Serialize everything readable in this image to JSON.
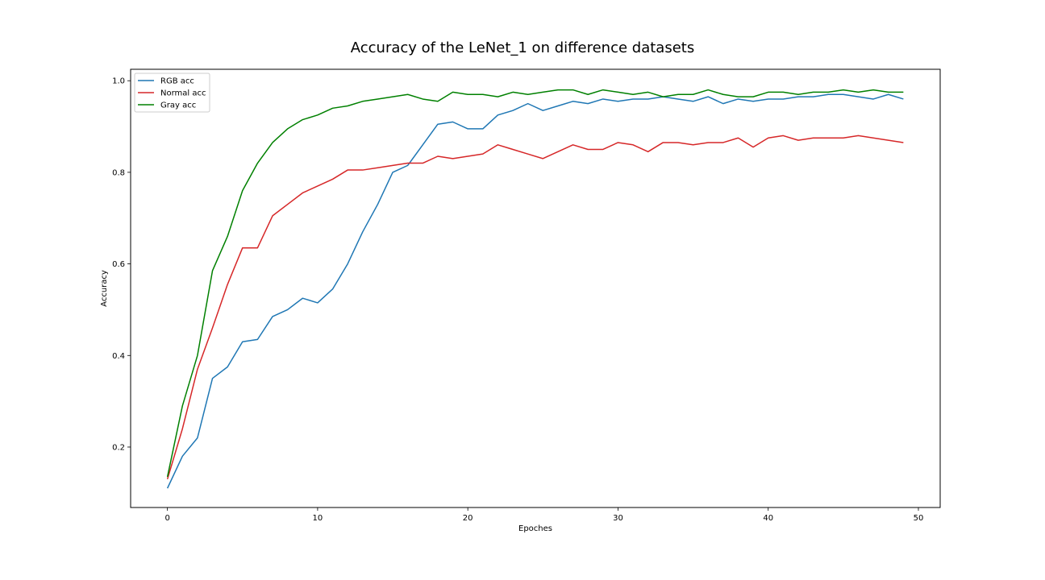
{
  "chart_data": {
    "type": "line",
    "title": "Accuracy of the LeNet_1 on difference datasets",
    "xlabel": "Epoches",
    "ylabel": "Accuracy",
    "xlim": [
      -2.45,
      51.45
    ],
    "ylim": [
      0.068,
      1.025
    ],
    "xticks": [
      0,
      10,
      20,
      30,
      40,
      50
    ],
    "yticks": [
      0.2,
      0.4,
      0.6,
      0.8,
      1.0
    ],
    "ytick_labels": [
      "0.2",
      "0.4",
      "0.6",
      "0.8",
      "1.0"
    ],
    "grid": false,
    "legend_position": "top-left",
    "x": [
      0,
      1,
      2,
      3,
      4,
      5,
      6,
      7,
      8,
      9,
      10,
      11,
      12,
      13,
      14,
      15,
      16,
      17,
      18,
      19,
      20,
      21,
      22,
      23,
      24,
      25,
      26,
      27,
      28,
      29,
      30,
      31,
      32,
      33,
      34,
      35,
      36,
      37,
      38,
      39,
      40,
      41,
      42,
      43,
      44,
      45,
      46,
      47,
      48,
      49
    ],
    "series": [
      {
        "name": "RGB acc",
        "color": "#1f77b4",
        "values": [
          0.11,
          0.18,
          0.22,
          0.35,
          0.375,
          0.43,
          0.435,
          0.485,
          0.5,
          0.525,
          0.515,
          0.545,
          0.6,
          0.67,
          0.73,
          0.8,
          0.815,
          0.86,
          0.905,
          0.91,
          0.895,
          0.895,
          0.925,
          0.935,
          0.95,
          0.935,
          0.945,
          0.955,
          0.95,
          0.96,
          0.955,
          0.96,
          0.96,
          0.965,
          0.96,
          0.955,
          0.965,
          0.95,
          0.96,
          0.955,
          0.96,
          0.96,
          0.965,
          0.965,
          0.97,
          0.97,
          0.965,
          0.96,
          0.97,
          0.96
        ]
      },
      {
        "name": "Normal acc",
        "color": "#d62728",
        "values": [
          0.13,
          0.24,
          0.37,
          0.46,
          0.555,
          0.635,
          0.635,
          0.705,
          0.73,
          0.755,
          0.77,
          0.785,
          0.805,
          0.805,
          0.81,
          0.815,
          0.82,
          0.82,
          0.835,
          0.83,
          0.835,
          0.84,
          0.86,
          0.85,
          0.84,
          0.83,
          0.845,
          0.86,
          0.85,
          0.85,
          0.865,
          0.86,
          0.845,
          0.865,
          0.865,
          0.86,
          0.865,
          0.865,
          0.875,
          0.855,
          0.875,
          0.88,
          0.87,
          0.875,
          0.875,
          0.875,
          0.88,
          0.875,
          0.87,
          0.865
        ]
      },
      {
        "name": "Gray acc",
        "color": "#008000",
        "values": [
          0.135,
          0.29,
          0.4,
          0.585,
          0.66,
          0.76,
          0.82,
          0.865,
          0.895,
          0.915,
          0.925,
          0.94,
          0.945,
          0.955,
          0.96,
          0.965,
          0.97,
          0.96,
          0.955,
          0.975,
          0.97,
          0.97,
          0.965,
          0.975,
          0.97,
          0.975,
          0.98,
          0.98,
          0.97,
          0.98,
          0.975,
          0.97,
          0.975,
          0.965,
          0.97,
          0.97,
          0.98,
          0.97,
          0.965,
          0.965,
          0.975,
          0.975,
          0.97,
          0.975,
          0.975,
          0.98,
          0.975,
          0.98,
          0.975,
          0.975
        ]
      }
    ]
  }
}
